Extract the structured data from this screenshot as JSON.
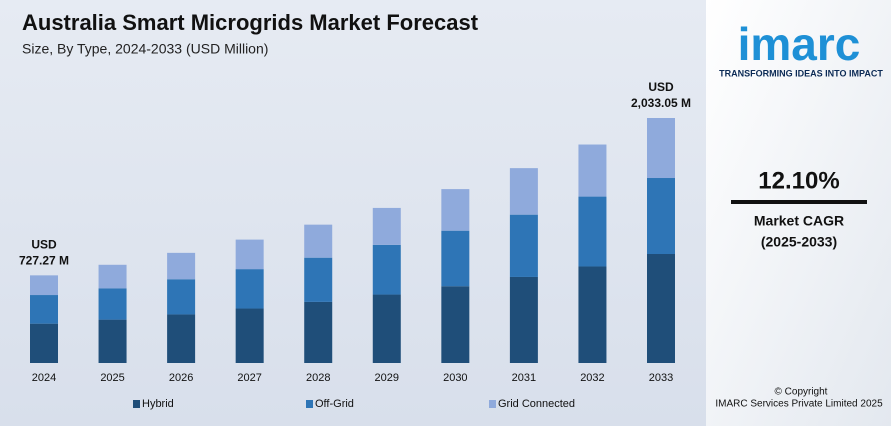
{
  "chart_data": {
    "type": "stacked_bar",
    "title": "Australia Smart Microgrids Market Forecast",
    "subtitle": "Size, By Type, 2024-2033 (USD Million)",
    "categories": [
      "2024",
      "2025",
      "2026",
      "2027",
      "2028",
      "2029",
      "2030",
      "2031",
      "2032",
      "2033"
    ],
    "series": [
      {
        "name": "Hybrid",
        "color": "#1f4e79",
        "values": [
          326.5,
          360,
          403,
          452,
          507,
          568,
          637,
          714,
          801,
          904.45
        ]
      },
      {
        "name": "Off-Grid",
        "color": "#2e75b6",
        "values": [
          237.5,
          260,
          292,
          327,
          367,
          412,
          461,
          517,
          580,
          630.65
        ]
      },
      {
        "name": "Grid Connected",
        "color": "#8faadc",
        "values": [
          163.27,
          195,
          219,
          245,
          274,
          307,
          345,
          386,
          432,
          497.95
        ]
      }
    ],
    "total_labels": [
      [
        "USD",
        "727.27 M"
      ],
      null,
      null,
      null,
      null,
      null,
      null,
      null,
      null,
      [
        "USD",
        "2,033.05 M"
      ]
    ]
  },
  "sidebar": {
    "logo": "imarc",
    "tagline": "TRANSFORMING IDEAS INTO IMPACT",
    "cagr": "12.10%",
    "cagr_label": "Market CAGR",
    "cagr_period": "(2025-2033)",
    "copyright": "© Copyright",
    "company": "IMARC Services Private Limited 2025"
  }
}
